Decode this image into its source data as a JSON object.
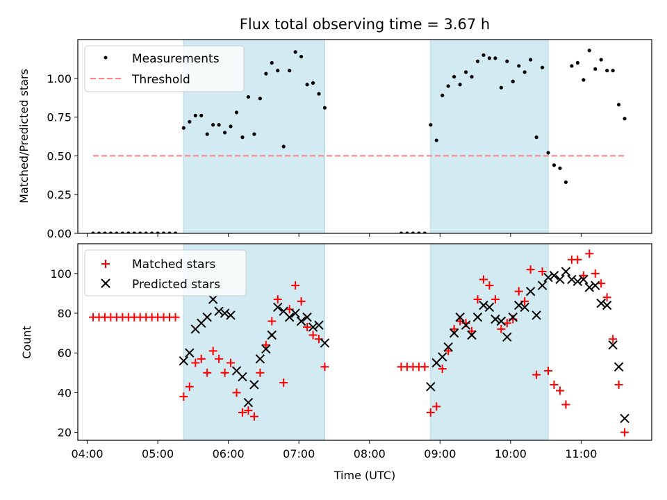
{
  "chart_data": [
    {
      "type": "scatter",
      "title": "Flux total observing time = 3.67 h",
      "xlabel": "",
      "ylabel": "Matched/Predicted stars",
      "xlim": [
        "03:52",
        "12:00"
      ],
      "ylim": [
        0,
        1.25
      ],
      "yticks": [
        "0.00",
        "0.25",
        "0.50",
        "0.75",
        "1.00"
      ],
      "ytick_values": [
        0,
        0.25,
        0.5,
        0.75,
        1.0
      ],
      "legend_position": "top-left",
      "grid": false,
      "shaded_intervals": [
        [
          "05:22",
          "07:22"
        ],
        [
          "08:52",
          "10:32"
        ]
      ],
      "shade_color": "#add8e6",
      "threshold": {
        "name": "Threshold",
        "y": 0.5,
        "x_range": [
          "04:05",
          "11:37"
        ],
        "color": "#ff7f7f"
      },
      "series": [
        {
          "name": "Measurements",
          "color": "#000000",
          "marker": "dot",
          "x": [
            "04:05",
            "04:10",
            "04:15",
            "04:20",
            "04:25",
            "04:30",
            "04:35",
            "04:40",
            "04:45",
            "04:50",
            "04:55",
            "05:00",
            "05:05",
            "05:10",
            "05:15",
            "05:22",
            "05:27",
            "05:32",
            "05:37",
            "05:42",
            "05:47",
            "05:52",
            "05:57",
            "06:02",
            "06:07",
            "06:12",
            "06:17",
            "06:22",
            "06:27",
            "06:32",
            "06:37",
            "06:42",
            "06:47",
            "06:52",
            "06:57",
            "07:02",
            "07:07",
            "07:12",
            "07:17",
            "07:22",
            "08:27",
            "08:32",
            "08:37",
            "08:42",
            "08:47",
            "08:52",
            "08:57",
            "09:02",
            "09:07",
            "09:12",
            "09:17",
            "09:22",
            "09:27",
            "09:32",
            "09:37",
            "09:42",
            "09:47",
            "09:52",
            "09:57",
            "10:02",
            "10:07",
            "10:12",
            "10:17",
            "10:22",
            "10:27",
            "10:32",
            "10:37",
            "10:42",
            "10:47",
            "10:52",
            "10:57",
            "11:02",
            "11:07",
            "11:12",
            "11:17",
            "11:22",
            "11:27",
            "11:32",
            "11:37"
          ],
          "y": [
            0,
            0,
            0,
            0,
            0,
            0,
            0,
            0,
            0,
            0,
            0,
            0,
            0,
            0,
            0,
            0.68,
            0.72,
            0.76,
            0.76,
            0.64,
            0.7,
            0.7,
            0.65,
            0.69,
            0.78,
            0.62,
            0.88,
            0.64,
            0.87,
            1.03,
            1.1,
            1.05,
            0.56,
            1.05,
            1.17,
            1.14,
            0.96,
            0.97,
            0.9,
            0.81,
            0,
            0,
            0,
            0,
            0,
            0.7,
            0.6,
            0.89,
            0.95,
            1.01,
            0.96,
            1.04,
            1.01,
            1.11,
            1.15,
            1.13,
            1.13,
            0.94,
            1.11,
            0.98,
            1.08,
            1.04,
            1.12,
            0.62,
            1.07,
            0.52,
            0.44,
            0.42,
            0.33,
            1.08,
            1.1,
            0.99,
            1.18,
            1.06,
            1.12,
            1.05,
            1.05,
            0.83,
            0.74
          ]
        }
      ]
    },
    {
      "type": "scatter",
      "title": "",
      "xlabel": "Time (UTC)",
      "ylabel": "Count",
      "xlim": [
        "03:52",
        "12:00"
      ],
      "ylim": [
        16,
        115
      ],
      "yticks": [
        "20",
        "40",
        "60",
        "80",
        "100"
      ],
      "ytick_values": [
        20,
        40,
        60,
        80,
        100
      ],
      "xticks": [
        "04:00",
        "05:00",
        "06:00",
        "07:00",
        "08:00",
        "09:00",
        "10:00",
        "11:00"
      ],
      "legend_position": "top-left",
      "grid": false,
      "shaded_intervals": [
        [
          "05:22",
          "07:22"
        ],
        [
          "08:52",
          "10:32"
        ]
      ],
      "shade_color": "#add8e6",
      "series": [
        {
          "name": "Matched stars",
          "color": "#ff0000",
          "marker": "plus",
          "x": [
            "04:05",
            "04:10",
            "04:15",
            "04:20",
            "04:25",
            "04:30",
            "04:35",
            "04:40",
            "04:45",
            "04:50",
            "04:55",
            "05:00",
            "05:05",
            "05:10",
            "05:15",
            "05:22",
            "05:27",
            "05:32",
            "05:37",
            "05:42",
            "05:47",
            "05:52",
            "05:57",
            "06:02",
            "06:07",
            "06:12",
            "06:17",
            "06:22",
            "06:27",
            "06:32",
            "06:37",
            "06:42",
            "06:47",
            "06:52",
            "06:57",
            "07:02",
            "07:07",
            "07:12",
            "07:17",
            "07:22",
            "08:27",
            "08:32",
            "08:37",
            "08:42",
            "08:47",
            "08:52",
            "08:57",
            "09:02",
            "09:07",
            "09:12",
            "09:17",
            "09:22",
            "09:27",
            "09:32",
            "09:37",
            "09:42",
            "09:47",
            "09:52",
            "09:57",
            "10:02",
            "10:07",
            "10:12",
            "10:17",
            "10:22",
            "10:27",
            "10:32",
            "10:37",
            "10:42",
            "10:47",
            "10:52",
            "10:57",
            "11:02",
            "11:07",
            "11:12",
            "11:17",
            "11:22",
            "11:27",
            "11:32",
            "11:37"
          ],
          "y": [
            78,
            78,
            78,
            78,
            78,
            78,
            78,
            78,
            78,
            78,
            78,
            78,
            78,
            78,
            78,
            38,
            43,
            55,
            57,
            50,
            61,
            57,
            50,
            55,
            40,
            30,
            31,
            28,
            50,
            64,
            76,
            87,
            45,
            82,
            94,
            86,
            73,
            69,
            67,
            53,
            53,
            53,
            53,
            53,
            53,
            30,
            33,
            52,
            61,
            72,
            76,
            75,
            71,
            87,
            97,
            94,
            87,
            72,
            75,
            77,
            91,
            86,
            102,
            49,
            101,
            51,
            44,
            41,
            34,
            107,
            107,
            99,
            110,
            100,
            95,
            88,
            67,
            44,
            20
          ]
        },
        {
          "name": "Predicted stars",
          "color": "#000000",
          "marker": "x",
          "x": [
            "05:22",
            "05:27",
            "05:32",
            "05:37",
            "05:42",
            "05:47",
            "05:52",
            "05:57",
            "06:02",
            "06:07",
            "06:12",
            "06:17",
            "06:22",
            "06:27",
            "06:32",
            "06:37",
            "06:42",
            "06:47",
            "06:52",
            "06:57",
            "07:02",
            "07:07",
            "07:12",
            "07:17",
            "07:22",
            "08:52",
            "08:57",
            "09:02",
            "09:07",
            "09:12",
            "09:17",
            "09:22",
            "09:27",
            "09:32",
            "09:37",
            "09:42",
            "09:47",
            "09:52",
            "09:57",
            "10:02",
            "10:07",
            "10:12",
            "10:17",
            "10:22",
            "10:27",
            "10:32",
            "10:37",
            "10:42",
            "10:47",
            "10:52",
            "10:57",
            "11:02",
            "11:07",
            "11:12",
            "11:17",
            "11:22",
            "11:27",
            "11:32",
            "11:37"
          ],
          "y": [
            56,
            60,
            72,
            75,
            78,
            87,
            81,
            80,
            79,
            51,
            48,
            35,
            44,
            57,
            62,
            69,
            83,
            81,
            78,
            80,
            76,
            78,
            73,
            74,
            65,
            43,
            55,
            58,
            63,
            70,
            78,
            74,
            69,
            78,
            84,
            83,
            77,
            76,
            68,
            78,
            84,
            83,
            91,
            79,
            94,
            98,
            99,
            97,
            101,
            97,
            96,
            97,
            93,
            94,
            85,
            84,
            64,
            53,
            27
          ]
        }
      ]
    }
  ]
}
